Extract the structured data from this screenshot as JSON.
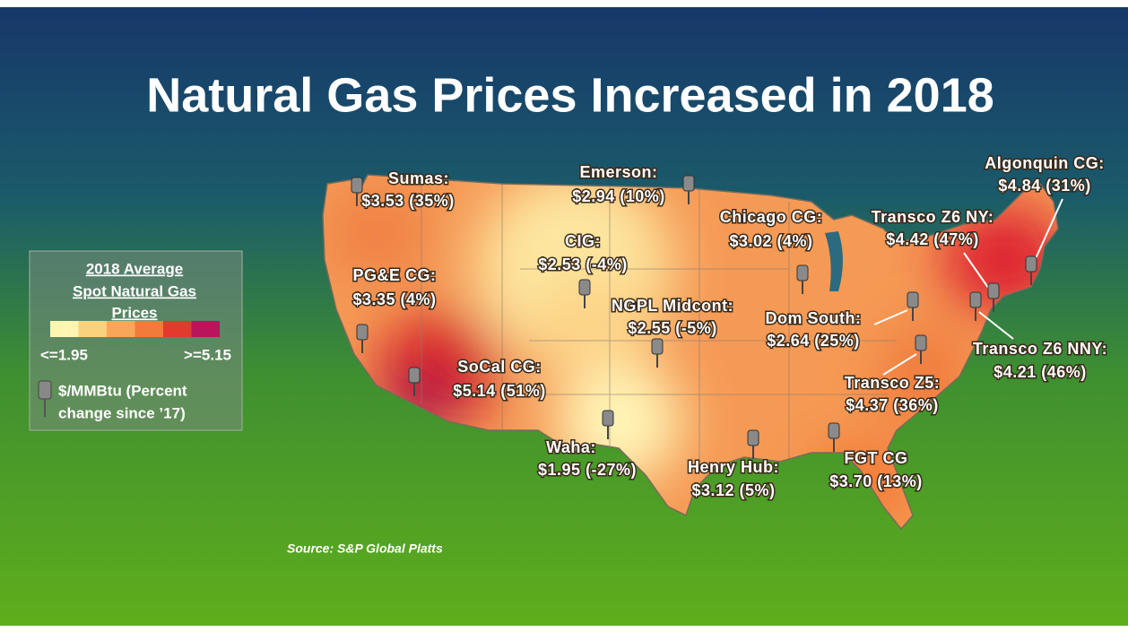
{
  "title": "Natural Gas Prices Increased in 2018",
  "legend": {
    "title_lines": [
      "2018 Average",
      "Spot Natural Gas",
      "Prices"
    ],
    "colors": [
      "#fdf5b0",
      "#fbd27c",
      "#f8a65a",
      "#f27a3a",
      "#e23a2c",
      "#b8155c"
    ],
    "min_label": "<=1.95",
    "max_label": ">=5.15",
    "pin_lines": [
      "$/MMBtu (Percent",
      "change since ’17)"
    ]
  },
  "hubs": [
    {
      "name": "Sumas:",
      "price": "$3.53 (35%)"
    },
    {
      "name": "Emerson:",
      "price": "$2.94 (10%)"
    },
    {
      "name": "Algonquin CG:",
      "price": "$4.84 (31%)"
    },
    {
      "name": "Chicago CG:",
      "price": "$3.02 (4%)"
    },
    {
      "name": "Transco Z6 NY:",
      "price": "$4.42 (47%)"
    },
    {
      "name": "CIG:",
      "price": "$2.53 (-4%)"
    },
    {
      "name": "PG&E CG:",
      "price": "$3.35 (4%)"
    },
    {
      "name": "NGPL Midcont:",
      "price": "$2.55 (-5%)"
    },
    {
      "name": "Dom South:",
      "price": "$2.64 (25%)"
    },
    {
      "name": "Transco Z6 NNY:",
      "price": "$4.21 (46%)"
    },
    {
      "name": "SoCal CG:",
      "price": "$5.14 (51%)"
    },
    {
      "name": "Transco Z5:",
      "price": "$4.37 (36%)"
    },
    {
      "name": "Waha:",
      "price": "$1.95 (-27%)"
    },
    {
      "name": "Henry Hub:",
      "price": "$3.12 (5%)"
    },
    {
      "name": "FGT CG",
      "price": "$3.70 (13%)"
    }
  ],
  "source": "Source:  S&P Global Platts"
}
